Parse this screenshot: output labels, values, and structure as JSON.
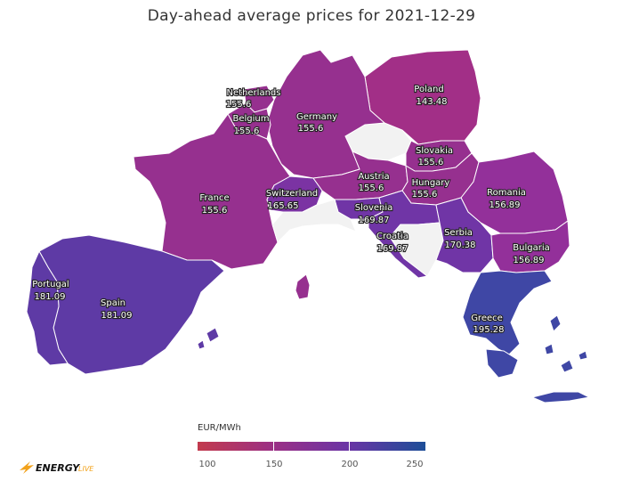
{
  "title": "Day-ahead average prices for 2021-12-29",
  "legend": {
    "title": "EUR/MWh",
    "ticks": [
      "100",
      "150",
      "200",
      "250"
    ],
    "min": 100,
    "max": 250,
    "colors": [
      "#c23a4d",
      "#9a2f86",
      "#6a34a5",
      "#1d4e98"
    ]
  },
  "logo": {
    "text": "ENERGY",
    "subtext": "LIVE",
    "icon": "energy-bolt-icon"
  },
  "colors": {
    "no_data": "#f2f2f2",
    "price_143": "#a22f87",
    "price_155": "#96308f",
    "price_156": "#93309a",
    "price_165": "#7b33a3",
    "price_170": "#7035a6",
    "price_181": "#5e3aa5",
    "price_195": "#3f47a5"
  },
  "countries": [
    {
      "name": "Netherlands",
      "price": "155.6"
    },
    {
      "name": "Belgium",
      "price": "155.6"
    },
    {
      "name": "Germany",
      "price": "155.6"
    },
    {
      "name": "Poland",
      "price": "143.48"
    },
    {
      "name": "France",
      "price": "155.6"
    },
    {
      "name": "Switzerland",
      "price": "165.65"
    },
    {
      "name": "Austria",
      "price": "155.6"
    },
    {
      "name": "Slovakia",
      "price": "155.6"
    },
    {
      "name": "Hungary",
      "price": "155.6"
    },
    {
      "name": "Romania",
      "price": "156.89"
    },
    {
      "name": "Slovenia",
      "price": "169.87"
    },
    {
      "name": "Croatia",
      "price": "169.87"
    },
    {
      "name": "Serbia",
      "price": "170.38"
    },
    {
      "name": "Bulgaria",
      "price": "156.89"
    },
    {
      "name": "Portugal",
      "price": "181.09"
    },
    {
      "name": "Spain",
      "price": "181.09"
    },
    {
      "name": "Greece",
      "price": "195.28"
    }
  ]
}
